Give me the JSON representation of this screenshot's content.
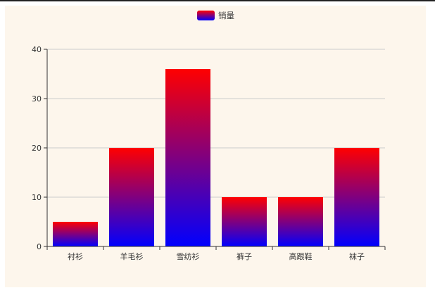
{
  "chart_data": {
    "type": "bar",
    "categories": [
      "衬衫",
      "羊毛衫",
      "雪纺衫",
      "裤子",
      "高跟鞋",
      "袜子"
    ],
    "series": [
      {
        "name": "销量",
        "values": [
          5,
          20,
          36,
          10,
          10,
          20
        ]
      }
    ],
    "ylim": [
      0,
      40
    ],
    "yticks": [
      0,
      10,
      20,
      30,
      40
    ],
    "grid": true,
    "legend": "top-center",
    "colors": {
      "bar_top": "#ff0000",
      "bar_bottom": "#0000ff",
      "background": "#fdf6ec",
      "grid": "#cccccc",
      "axis": "#333333"
    }
  }
}
